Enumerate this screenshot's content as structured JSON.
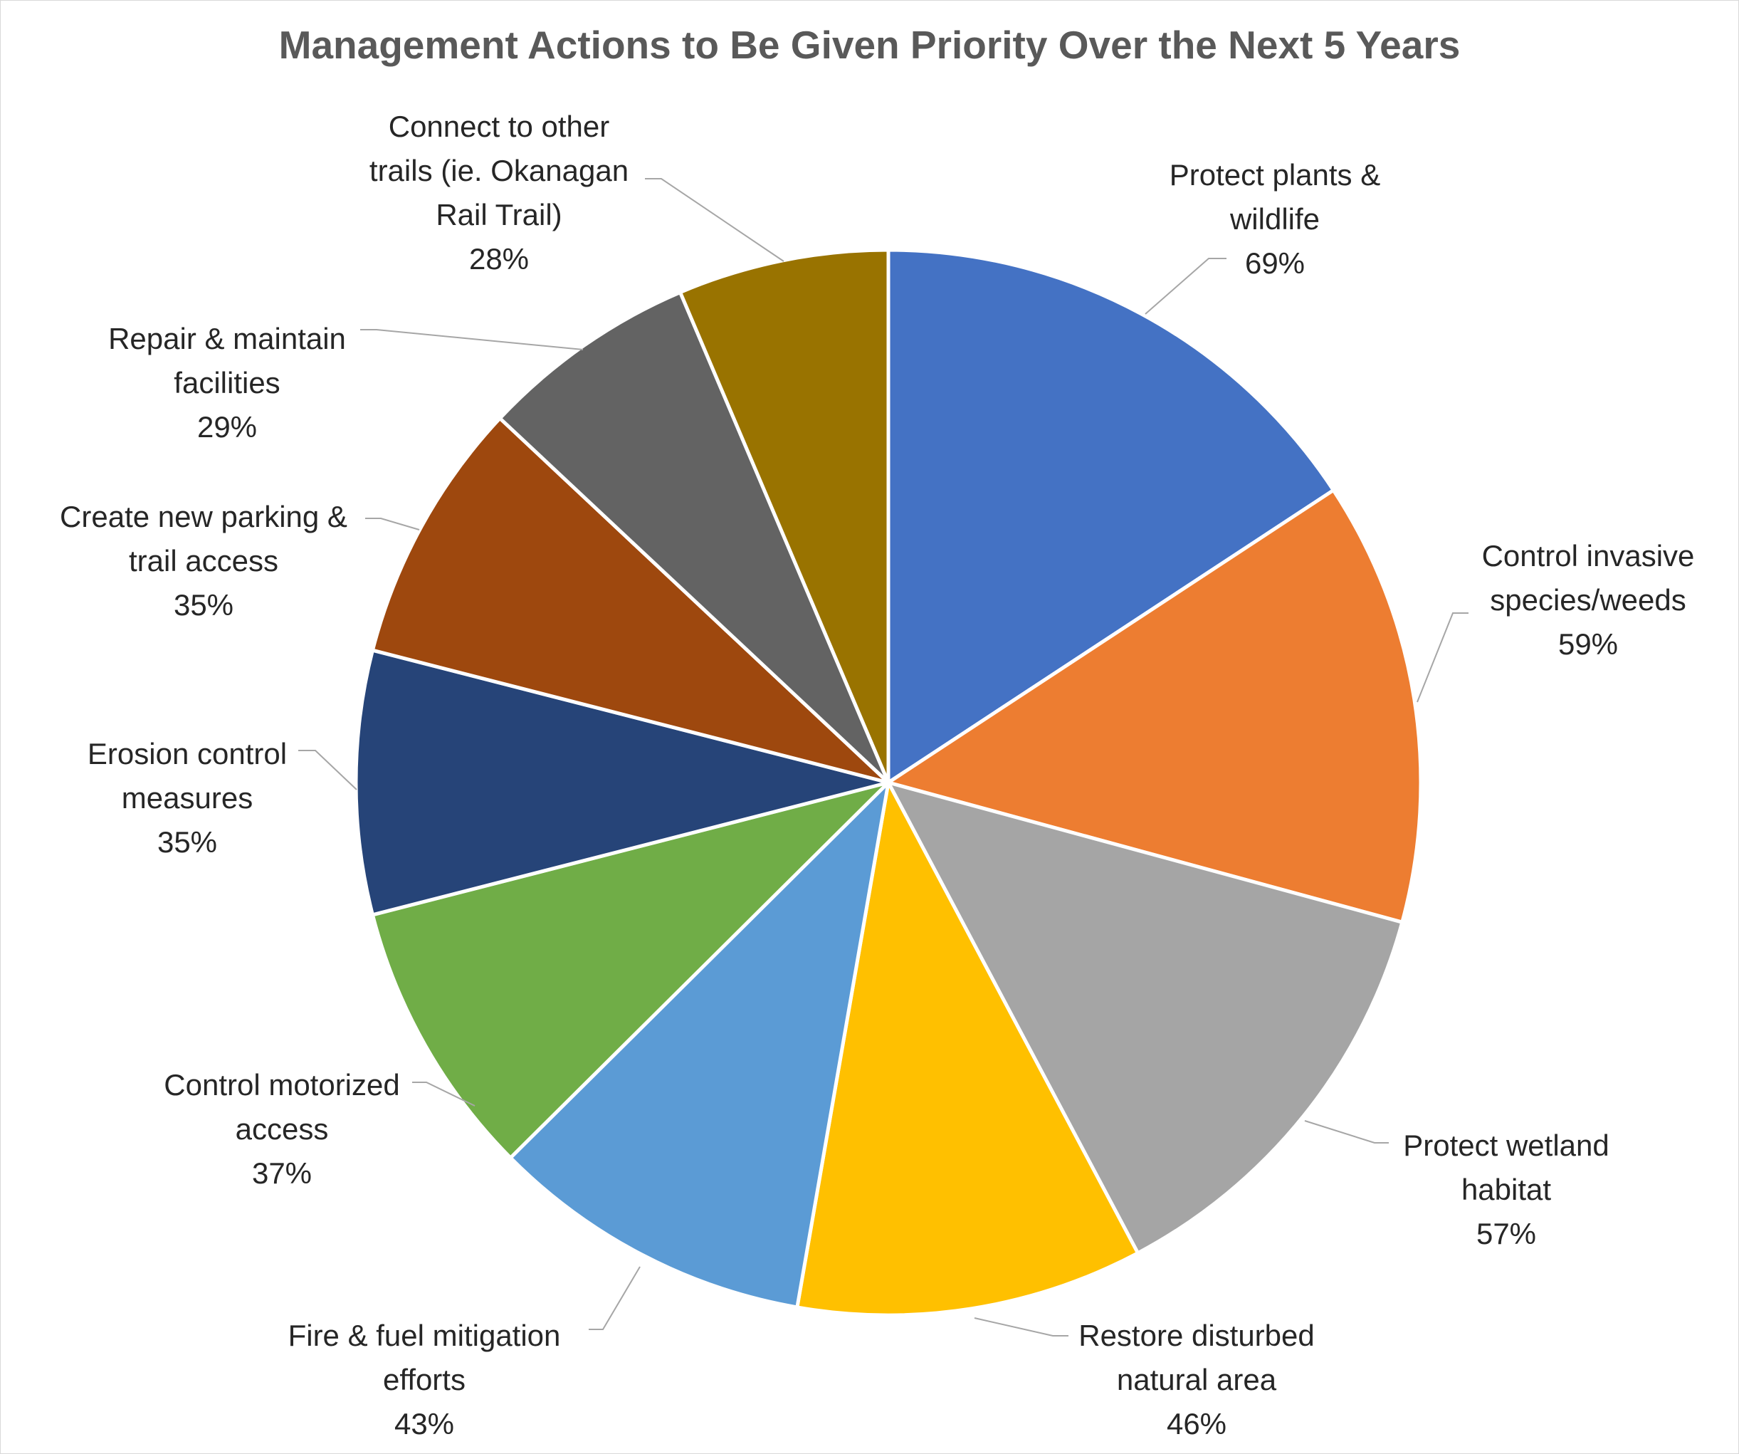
{
  "chart_data": {
    "type": "pie",
    "title": "Management Actions to Be Given Priority Over the Next 5 Years",
    "slices": [
      {
        "label": "Protect plants & wildlife",
        "lines": [
          "Protect plants &",
          "wildlife"
        ],
        "value": 69,
        "value_label": "69%",
        "color": "#4472C4"
      },
      {
        "label": "Control invasive species/weeds",
        "lines": [
          "Control invasive",
          "species/weeds"
        ],
        "value": 59,
        "value_label": "59%",
        "color": "#ED7D31"
      },
      {
        "label": "Protect wetland habitat",
        "lines": [
          "Protect wetland",
          "habitat"
        ],
        "value": 57,
        "value_label": "57%",
        "color": "#A5A5A5"
      },
      {
        "label": "Restore disturbed natural area",
        "lines": [
          "Restore disturbed",
          "natural area"
        ],
        "value": 46,
        "value_label": "46%",
        "color": "#FFC000"
      },
      {
        "label": "Fire & fuel mitigation efforts",
        "lines": [
          "Fire & fuel mitigation",
          "efforts"
        ],
        "value": 43,
        "value_label": "43%",
        "color": "#5B9BD5"
      },
      {
        "label": "Control motorized access",
        "lines": [
          "Control motorized",
          "access"
        ],
        "value": 37,
        "value_label": "37%",
        "color": "#70AD47"
      },
      {
        "label": "Erosion control measures",
        "lines": [
          "Erosion control",
          "measures"
        ],
        "value": 35,
        "value_label": "35%",
        "color": "#264478"
      },
      {
        "label": "Create new parking & trail access",
        "lines": [
          "Create new parking &",
          "trail access"
        ],
        "value": 35,
        "value_label": "35%",
        "color": "#9E480E"
      },
      {
        "label": "Repair & maintain facilities",
        "lines": [
          "Repair & maintain",
          "facilities"
        ],
        "value": 29,
        "value_label": "29%",
        "color": "#636363"
      },
      {
        "label": "Connect to other trails (ie. Okanagan Rail Trail)",
        "lines": [
          "Connect to other",
          "trails  (ie. Okanagan",
          "Rail Trail)"
        ],
        "value": 28,
        "value_label": "28%",
        "color": "#997300"
      }
    ],
    "legend": "none",
    "data_labels": "outside-with-leader-lines"
  }
}
